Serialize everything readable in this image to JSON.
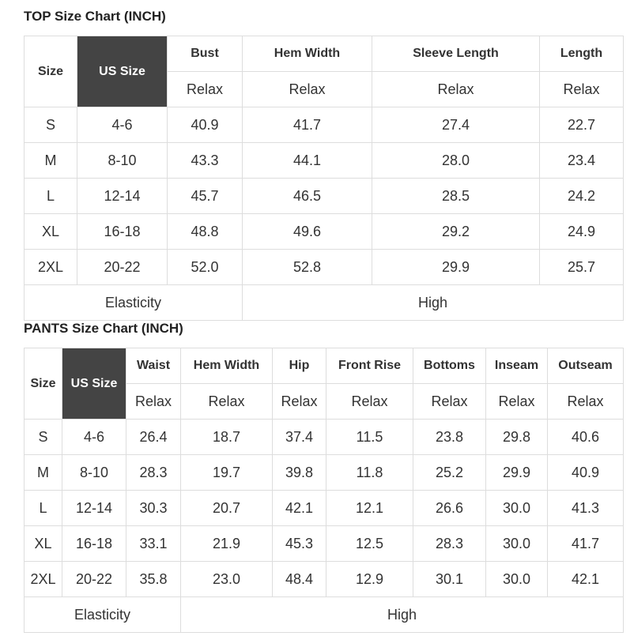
{
  "top": {
    "title": "TOP Size Chart (INCH)",
    "headers": [
      "Size",
      "US Size",
      "Bust",
      "Hem Width",
      "Sleeve Length",
      "Length"
    ],
    "subheaders": [
      "Relax",
      "Relax",
      "Relax",
      "Relax"
    ],
    "rows": [
      [
        "S",
        "4-6",
        "40.9",
        "41.7",
        "27.4",
        "22.7"
      ],
      [
        "M",
        "8-10",
        "43.3",
        "44.1",
        "28.0",
        "23.4"
      ],
      [
        "L",
        "12-14",
        "45.7",
        "46.5",
        "28.5",
        "24.2"
      ],
      [
        "XL",
        "16-18",
        "48.8",
        "49.6",
        "29.2",
        "24.9"
      ],
      [
        "2XL",
        "20-22",
        "52.0",
        "52.8",
        "29.9",
        "25.7"
      ]
    ],
    "footer": [
      "Elasticity",
      "High"
    ]
  },
  "pants": {
    "title": "PANTS Size Chart (INCH)",
    "headers": [
      "Size",
      "US Size",
      "Waist",
      "Hem Width",
      "Hip",
      "Front Rise",
      "Bottoms",
      "Inseam",
      "Outseam"
    ],
    "subheaders": [
      "Relax",
      "Relax",
      "Relax",
      "Relax",
      "Relax",
      "Relax",
      "Relax"
    ],
    "rows": [
      [
        "S",
        "4-6",
        "26.4",
        "18.7",
        "37.4",
        "11.5",
        "23.8",
        "29.8",
        "40.6"
      ],
      [
        "M",
        "8-10",
        "28.3",
        "19.7",
        "39.8",
        "11.8",
        "25.2",
        "29.9",
        "40.9"
      ],
      [
        "L",
        "12-14",
        "30.3",
        "20.7",
        "42.1",
        "12.1",
        "26.6",
        "30.0",
        "41.3"
      ],
      [
        "XL",
        "16-18",
        "33.1",
        "21.9",
        "45.3",
        "12.5",
        "28.3",
        "30.0",
        "41.7"
      ],
      [
        "2XL",
        "20-22",
        "35.8",
        "23.0",
        "48.4",
        "12.9",
        "30.1",
        "30.0",
        "42.1"
      ]
    ],
    "footer": [
      "Elasticity",
      "High"
    ]
  }
}
